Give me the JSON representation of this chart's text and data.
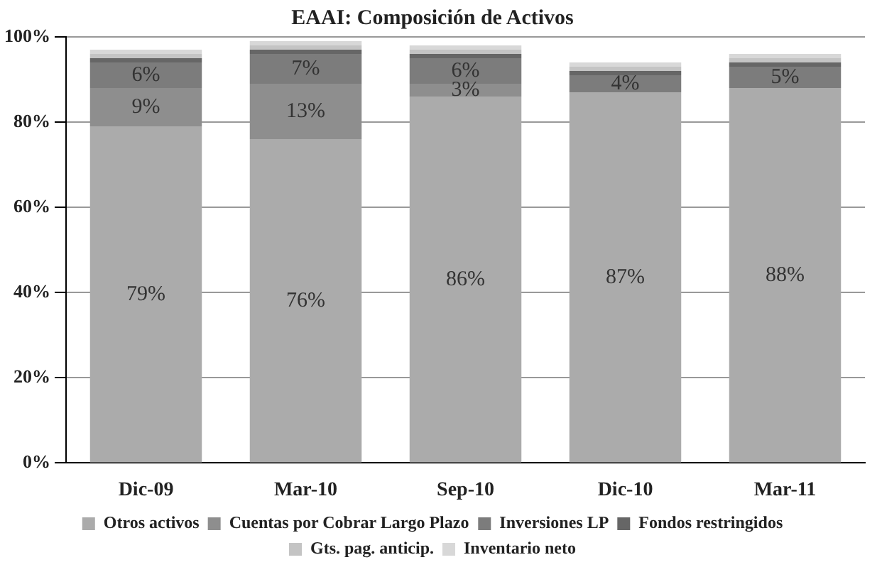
{
  "chart_data": {
    "type": "bar",
    "stacked": true,
    "title": "EAAI: Composición de Activos",
    "categories": [
      "Dic-09",
      "Mar-10",
      "Sep-10",
      "Dic-10",
      "Mar-11"
    ],
    "ylim": [
      0,
      100
    ],
    "yticks": [
      {
        "value": 0,
        "label": "0%"
      },
      {
        "value": 20,
        "label": "20%"
      },
      {
        "value": 40,
        "label": "40%"
      },
      {
        "value": 60,
        "label": "60%"
      },
      {
        "value": 80,
        "label": "80%"
      },
      {
        "value": 100,
        "label": "100%"
      }
    ],
    "grid": "y",
    "legend": "bottom",
    "series": [
      {
        "name": "Otros activos",
        "color": "#ababab",
        "values": [
          79,
          76,
          86,
          87,
          88
        ],
        "value_labels": [
          "79%",
          "76%",
          "86%",
          "87%",
          "88%"
        ]
      },
      {
        "name": "Cuentas por Cobrar Largo Plazo",
        "color": "#8e8e8e",
        "values": [
          9,
          13,
          3,
          null,
          null
        ],
        "value_labels": [
          "9%",
          "13%",
          "3%",
          null,
          null
        ]
      },
      {
        "name": "Inversiones LP",
        "color": "#7c7c7c",
        "values": [
          6,
          7,
          6,
          4,
          5
        ],
        "value_labels": [
          "6%",
          "7%",
          "6%",
          "4%",
          "5%"
        ]
      },
      {
        "name": "Fondos restringidos",
        "color": "#666666",
        "values": [
          1,
          1,
          1,
          1,
          1
        ]
      },
      {
        "name": "Gts. pag. anticip.",
        "color": "#c4c4c4",
        "values": [
          1,
          1,
          1,
          1,
          1
        ]
      },
      {
        "name": "Inventario neto",
        "color": "#d8d8d8",
        "values": [
          1,
          1,
          1,
          1,
          1
        ]
      }
    ]
  }
}
